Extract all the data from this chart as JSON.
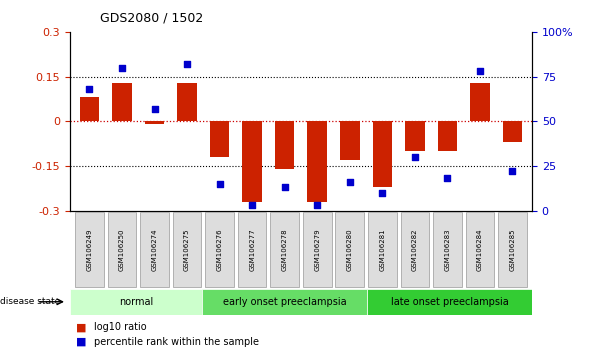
{
  "title": "GDS2080 / 1502",
  "samples": [
    "GSM106249",
    "GSM106250",
    "GSM106274",
    "GSM106275",
    "GSM106276",
    "GSM106277",
    "GSM106278",
    "GSM106279",
    "GSM106280",
    "GSM106281",
    "GSM106282",
    "GSM106283",
    "GSM106284",
    "GSM106285"
  ],
  "log10_ratio": [
    0.08,
    0.13,
    -0.01,
    0.13,
    -0.12,
    -0.27,
    -0.16,
    -0.27,
    -0.13,
    -0.22,
    -0.1,
    -0.1,
    0.13,
    -0.07
  ],
  "percentile_rank": [
    68,
    80,
    57,
    82,
    15,
    3,
    13,
    3,
    16,
    10,
    30,
    18,
    78,
    22
  ],
  "ylim_left": [
    -0.3,
    0.3
  ],
  "ylim_right": [
    0,
    100
  ],
  "yticks_left": [
    -0.3,
    -0.15,
    0,
    0.15,
    0.3
  ],
  "yticks_right": [
    0,
    25,
    50,
    75,
    100
  ],
  "ytick_labels_left": [
    "-0.3",
    "-0.15",
    "0",
    "0.15",
    "0.3"
  ],
  "ytick_labels_right": [
    "0",
    "25",
    "50",
    "75",
    "100%"
  ],
  "bar_color": "#cc2200",
  "dot_color": "#0000cc",
  "zero_line_color": "#cc0000",
  "hline_color": "#000000",
  "groups": [
    {
      "label": "normal",
      "start": 0,
      "end": 4,
      "color": "#ccffcc"
    },
    {
      "label": "early onset preeclampsia",
      "start": 4,
      "end": 9,
      "color": "#66dd66"
    },
    {
      "label": "late onset preeclampsia",
      "start": 9,
      "end": 14,
      "color": "#33cc33"
    }
  ],
  "disease_state_label": "disease state",
  "legend_items": [
    {
      "label": "log10 ratio",
      "color": "#cc2200"
    },
    {
      "label": "percentile rank within the sample",
      "color": "#0000cc"
    }
  ],
  "bg_color": "#ffffff",
  "tick_color_left": "#cc2200",
  "tick_color_right": "#0000cc",
  "xtick_bg": "#cccccc",
  "sample_box_color": "#dddddd"
}
